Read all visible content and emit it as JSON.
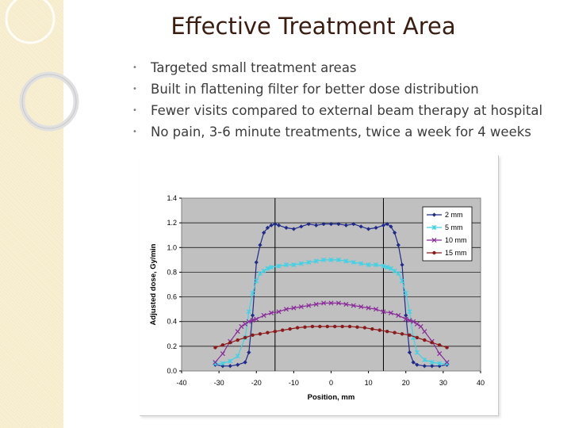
{
  "slide": {
    "title": "Effective Treatment Area",
    "bullets": [
      "Targeted small treatment areas",
      "Built in flattening filter for better dose distribution",
      "Fewer visits compared to external beam therapy at hospital",
      "No pain, 3-6 minute treatments, twice a week for 4 weeks"
    ]
  },
  "chart_data": {
    "type": "line",
    "title": "",
    "xlabel": "Position, mm",
    "ylabel": "Adjusted dose, Gy/min",
    "xlim": [
      -40,
      40
    ],
    "ylim": [
      0,
      1.4
    ],
    "xticks": [
      "-40",
      "-30",
      "-20",
      "-10",
      "0",
      "10",
      "20",
      "30",
      "40"
    ],
    "yticks": [
      "0.0",
      "0.2",
      "0.4",
      "0.6",
      "0.8",
      "1.0",
      "1.2",
      "1.4"
    ],
    "grid": true,
    "vlines": [
      -15,
      14
    ],
    "legend_position": "top-right",
    "series": [
      {
        "name": "2 mm",
        "color": "#1f2a8a",
        "marker": "diamond",
        "x": [
          -31,
          -29,
          -27,
          -25,
          -23,
          -22,
          -21,
          -20,
          -19,
          -18,
          -17,
          -16,
          -15,
          -14,
          -12,
          -10,
          -8,
          -6,
          -4,
          -2,
          0,
          2,
          4,
          6,
          8,
          10,
          12,
          14,
          15,
          16,
          17,
          18,
          19,
          20,
          21,
          22,
          23,
          25,
          27,
          29,
          31
        ],
        "y": [
          0.05,
          0.04,
          0.04,
          0.05,
          0.07,
          0.15,
          0.45,
          0.88,
          1.02,
          1.12,
          1.16,
          1.18,
          1.19,
          1.18,
          1.16,
          1.15,
          1.17,
          1.19,
          1.18,
          1.19,
          1.19,
          1.19,
          1.18,
          1.19,
          1.17,
          1.15,
          1.16,
          1.18,
          1.19,
          1.17,
          1.12,
          1.02,
          0.86,
          0.45,
          0.15,
          0.07,
          0.05,
          0.04,
          0.04,
          0.04,
          0.05
        ]
      },
      {
        "name": "5 mm",
        "color": "#3fd2e6",
        "marker": "cross",
        "x": [
          -31,
          -29,
          -27,
          -25,
          -23,
          -22,
          -21,
          -20,
          -19,
          -18,
          -17,
          -16,
          -14,
          -12,
          -10,
          -8,
          -6,
          -4,
          -2,
          0,
          2,
          4,
          6,
          8,
          10,
          12,
          14,
          15,
          16,
          17,
          18,
          19,
          20,
          21,
          22,
          23,
          25,
          27,
          29,
          31
        ],
        "y": [
          0.06,
          0.06,
          0.08,
          0.12,
          0.27,
          0.48,
          0.63,
          0.73,
          0.79,
          0.81,
          0.83,
          0.84,
          0.85,
          0.86,
          0.86,
          0.87,
          0.88,
          0.89,
          0.9,
          0.9,
          0.9,
          0.89,
          0.88,
          0.87,
          0.86,
          0.86,
          0.85,
          0.84,
          0.83,
          0.81,
          0.79,
          0.73,
          0.63,
          0.48,
          0.27,
          0.15,
          0.09,
          0.07,
          0.06,
          0.06
        ]
      },
      {
        "name": "10 mm",
        "color": "#8a2b9a",
        "marker": "x",
        "x": [
          -31,
          -29,
          -27,
          -25,
          -24,
          -23,
          -22,
          -21,
          -20,
          -18,
          -16,
          -14,
          -12,
          -10,
          -8,
          -6,
          -4,
          -2,
          0,
          2,
          4,
          6,
          8,
          10,
          12,
          14,
          16,
          18,
          20,
          21,
          22,
          23,
          24,
          25,
          27,
          29,
          31
        ],
        "y": [
          0.07,
          0.14,
          0.24,
          0.32,
          0.36,
          0.38,
          0.4,
          0.41,
          0.42,
          0.45,
          0.47,
          0.48,
          0.5,
          0.51,
          0.52,
          0.53,
          0.54,
          0.55,
          0.55,
          0.55,
          0.54,
          0.53,
          0.52,
          0.51,
          0.5,
          0.48,
          0.47,
          0.45,
          0.42,
          0.41,
          0.4,
          0.38,
          0.36,
          0.32,
          0.24,
          0.14,
          0.07
        ]
      },
      {
        "name": "15 mm",
        "color": "#8b1a1a",
        "marker": "circle",
        "x": [
          -31,
          -29,
          -27,
          -25,
          -23,
          -21,
          -19,
          -17,
          -15,
          -13,
          -11,
          -9,
          -7,
          -5,
          -3,
          -1,
          1,
          3,
          5,
          7,
          9,
          11,
          13,
          15,
          17,
          19,
          21,
          23,
          25,
          27,
          29,
          31
        ],
        "y": [
          0.19,
          0.21,
          0.23,
          0.25,
          0.27,
          0.29,
          0.3,
          0.31,
          0.32,
          0.33,
          0.34,
          0.35,
          0.355,
          0.36,
          0.36,
          0.36,
          0.36,
          0.36,
          0.36,
          0.355,
          0.35,
          0.34,
          0.33,
          0.32,
          0.31,
          0.3,
          0.29,
          0.27,
          0.25,
          0.23,
          0.21,
          0.19
        ]
      }
    ]
  }
}
